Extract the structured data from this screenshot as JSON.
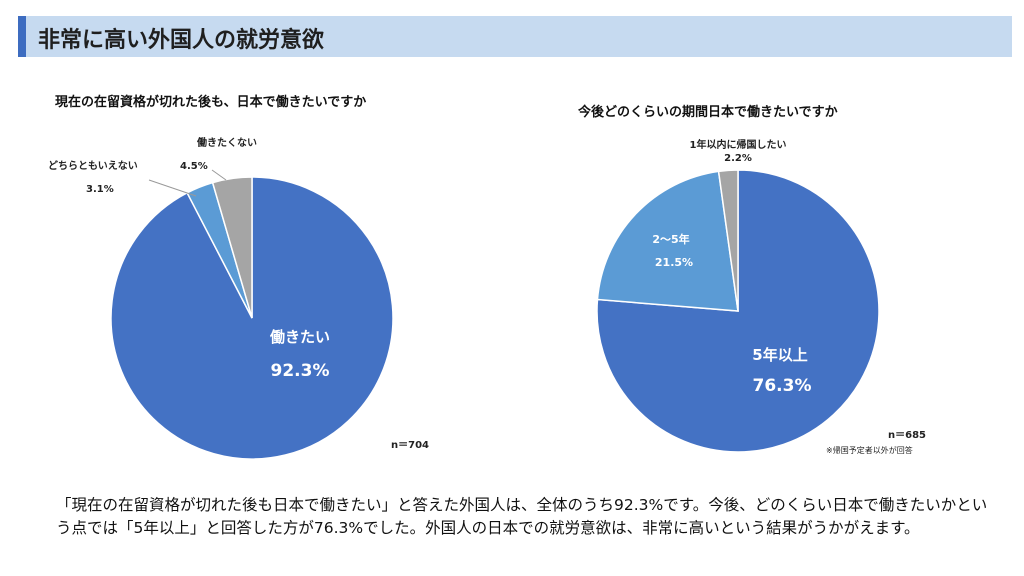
{
  "header": {
    "title": "非常に高い外国人の就労意欲"
  },
  "chart_data": [
    {
      "type": "pie",
      "title": "現在の在留資格が切れた後も、日本で働きたいですか",
      "categories": [
        "働きたい",
        "どちらともいえない",
        "働きたくない"
      ],
      "values": [
        92.3,
        3.1,
        4.5
      ],
      "value_labels": [
        "92.3%",
        "3.1%",
        "4.5%"
      ],
      "colors": [
        "#4472c4",
        "#5b9bd5",
        "#a5a5a5"
      ],
      "sample": "n＝704"
    },
    {
      "type": "pie",
      "title": "今後どのくらいの期間日本で働きたいですか",
      "categories": [
        "5年以上",
        "2～5年",
        "1年以内に帰国したい"
      ],
      "values": [
        76.3,
        21.5,
        2.2
      ],
      "value_labels": [
        "76.3%",
        "21.5%",
        "2.2%"
      ],
      "colors": [
        "#4472c4",
        "#5b9bd5",
        "#a5a5a5"
      ],
      "sample": "n＝685",
      "note": "※帰国予定者以外が回答"
    }
  ],
  "summary": "「現在の在留資格が切れた後も日本で働きたい」と答えた外国人は、全体のうち92.3%です。今後、どのくらい日本で働きたいかという点では「5年以上」と回答した方が76.3%でした。外国人の日本での就労意欲は、非常に高いという結果がうかがえます。"
}
